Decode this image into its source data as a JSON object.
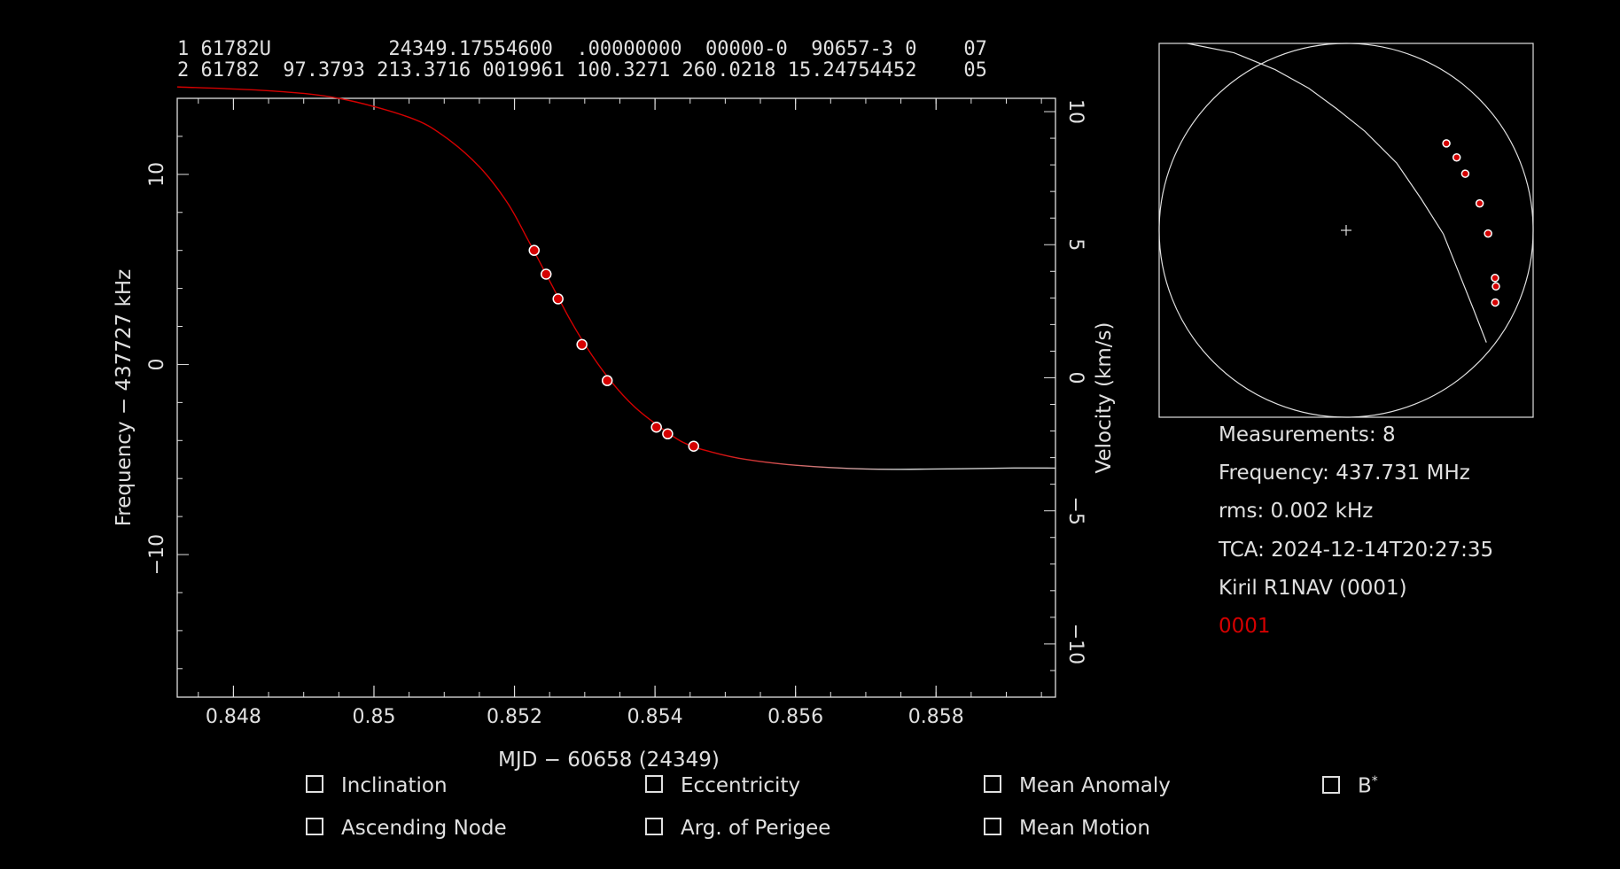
{
  "tle": {
    "line1": "1 61782U          24349.17554600  .00000000  00000-0  90657-3 0    07",
    "line2": "2 61782  97.3793 213.3716 0019961 100.3271 260.0218 15.24754452    05"
  },
  "info": {
    "measurements": "Measurements: 8",
    "frequency": "Frequency: 437.731 MHz",
    "rms": "rms: 0.002 kHz",
    "tca": "TCA: 2024-12-14T20:27:35",
    "observer": "Kiril R1NAV (0001)",
    "site": "0001",
    "site_color": "#d40000"
  },
  "checkboxes": {
    "inclination": "Inclination",
    "eccentricity": "Eccentricity",
    "mean_anomaly": "Mean Anomaly",
    "bstar_base": "B",
    "bstar_sup": "*",
    "ascending_node": "Ascending Node",
    "arg_perigee": "Arg. of Perigee",
    "mean_motion": "Mean Motion"
  },
  "chart_data": {
    "type": "scatter",
    "xlabel": "MJD − 60658 (24349)",
    "ylabel": "Frequency − 437727 kHz",
    "y2label": "Velocity (km/s)",
    "xlim": [
      0.8472,
      0.8597
    ],
    "ylim": [
      -17.5,
      14.0
    ],
    "y2lim": [
      -12.0,
      10.5
    ],
    "x_ticks": [
      0.848,
      0.85,
      0.852,
      0.854,
      0.856,
      0.858
    ],
    "x_tick_labels": [
      "0.848",
      "0.85",
      "0.852",
      "0.854",
      "0.856",
      "0.858"
    ],
    "y_ticks": [
      -10,
      0,
      10
    ],
    "y_tick_labels": [
      "−10",
      "0",
      "10"
    ],
    "y2_ticks": [
      -10,
      -5,
      0,
      5,
      10
    ],
    "y2_tick_labels": [
      "−10",
      "−5",
      "0",
      "5",
      "10"
    ],
    "curve_color": "#d40000",
    "curve_tail_color": "#cfcfcf",
    "point_color": "#d40000",
    "series": [
      {
        "x": [
          0.85228,
          0.85245,
          0.85262,
          0.85296,
          0.85332,
          0.85402,
          0.85418,
          0.85455
        ],
        "y": [
          6.0,
          4.75,
          3.45,
          1.05,
          -0.85,
          -3.3,
          -3.65,
          -4.3
        ]
      }
    ],
    "fit_curve": {
      "x": [
        0.8472,
        0.8485,
        0.8495,
        0.8505,
        0.851,
        0.8515,
        0.8519,
        0.8522,
        0.8525,
        0.8528,
        0.8531,
        0.8534,
        0.8537,
        0.854,
        0.8544,
        0.8548,
        0.8553,
        0.856,
        0.857,
        0.858,
        0.859,
        0.8597
      ],
      "y": [
        14.6,
        14.4,
        14.0,
        13.0,
        12.0,
        10.4,
        8.5,
        6.5,
        4.4,
        2.3,
        0.5,
        -1.0,
        -2.2,
        -3.1,
        -4.1,
        -4.6,
        -5.0,
        -5.3,
        -5.5,
        -5.5,
        -5.45,
        -5.45
      ]
    },
    "skyplot": {
      "track_x": [
        0.75,
        0.68,
        0.6,
        0.52,
        0.4,
        0.27,
        0.1,
        -0.05,
        -0.2,
        -0.38,
        -0.6,
        -0.85
      ],
      "track_y": [
        -0.6,
        -0.42,
        -0.22,
        -0.02,
        0.17,
        0.36,
        0.53,
        0.65,
        0.76,
        0.86,
        0.95,
        1.0
      ],
      "points_x": [
        0.536,
        0.591,
        0.637,
        0.714,
        0.759,
        0.796,
        0.801,
        0.797
      ],
      "points_y": [
        0.465,
        0.39,
        0.303,
        0.144,
        -0.017,
        -0.255,
        -0.3,
        -0.386
      ]
    }
  }
}
